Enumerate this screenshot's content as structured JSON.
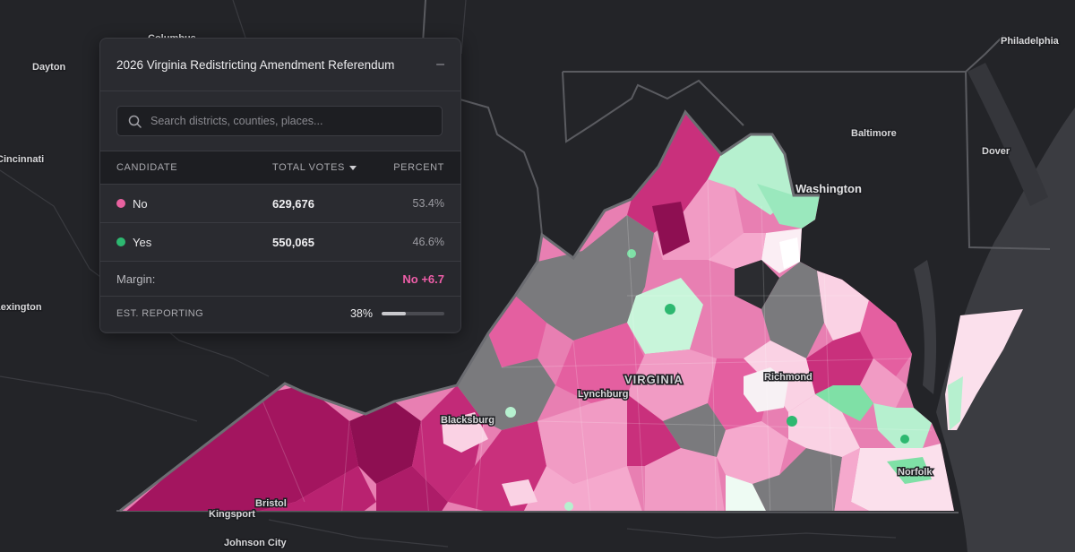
{
  "panel": {
    "title": "2026 Virginia Redistricting Amendment Referendum",
    "collapse_icon": "minus-icon",
    "search_placeholder": "Search districts, counties, places...",
    "columns": {
      "candidate": "CANDIDATE",
      "votes": "TOTAL VOTES",
      "percent": "PERCENT"
    },
    "candidates": [
      {
        "name": "No",
        "votes": "629,676",
        "percent": "53.4%",
        "color": "#e8619f"
      },
      {
        "name": "Yes",
        "votes": "550,065",
        "percent": "46.6%",
        "color": "#2db870"
      }
    ],
    "margin_label": "Margin:",
    "margin_value": "No +6.7",
    "reporting_label": "EST. REPORTING",
    "reporting_value": "38%",
    "reporting_fraction": 0.38
  },
  "map": {
    "labels": {
      "columbus": "Columbus",
      "dayton": "Dayton",
      "cincinnati": "Cincinnati",
      "lexington": "Lexington",
      "philadelphia": "Philadelphia",
      "baltimore": "Baltimore",
      "dover": "Dover",
      "washington": "Washington",
      "virginia": "VIRGINIA",
      "richmond": "Richmond",
      "lynchburg": "Lynchburg",
      "blacksburg": "Blacksburg",
      "bristol": "Bristol",
      "kingsport": "Kingsport",
      "johnson_city": "Johnson City",
      "norfolk": "Norfolk"
    },
    "colors": {
      "no_dark": "#a3155f",
      "no_strong": "#c9307c",
      "no_mid": "#e45fa0",
      "no_light": "#f19bc4",
      "no_faint": "#fad2e4",
      "yes_light": "#b6f0cf",
      "yes_mid": "#7fe0a6",
      "yes_strong": "#2db870",
      "no_results": "#7a7a7d",
      "background": "#232428"
    }
  }
}
